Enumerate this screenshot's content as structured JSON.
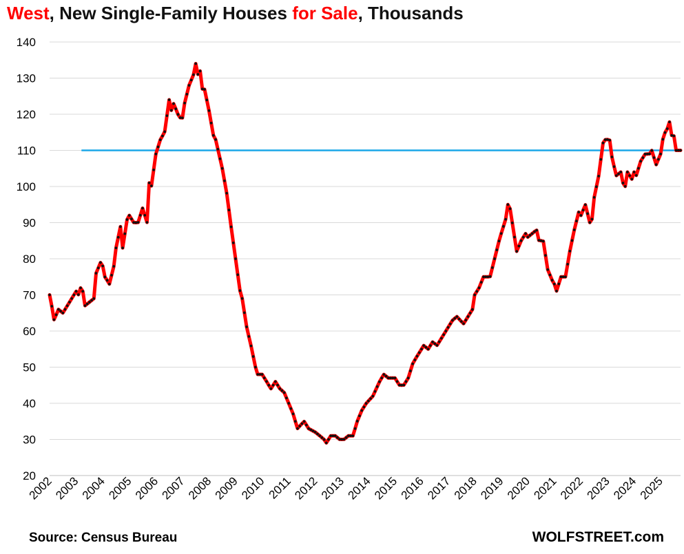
{
  "title": {
    "part1": "West",
    "part2": ", New Single-Family Houses ",
    "part3": "for Sale",
    "part4": ", Thousands"
  },
  "source": "Source: Census Bureau",
  "brand": "WOLFSTREET.com",
  "colors": {
    "line": "#ff0000",
    "marker": "#111111",
    "reference_line": "#1aa7e8",
    "grid": "#d9d9d9",
    "title_accent": "#ff0000"
  },
  "chart_data": {
    "type": "line",
    "title": "West, New Single-Family Houses for Sale, Thousands",
    "xlabel": "",
    "ylabel": "",
    "ylim": [
      20,
      140
    ],
    "yticks": [
      20,
      30,
      40,
      50,
      60,
      70,
      80,
      90,
      100,
      110,
      120,
      130,
      140
    ],
    "xlim": [
      2002.0,
      2025.75
    ],
    "xticks": [
      "2002",
      "2003",
      "2004",
      "2005",
      "2006",
      "2007",
      "2008",
      "2009",
      "2010",
      "2011",
      "2012",
      "2013",
      "2014",
      "2015",
      "2016",
      "2017",
      "2018",
      "2019",
      "2020",
      "2021",
      "2022",
      "2023",
      "2024",
      "2025"
    ],
    "grid": true,
    "reference_line": {
      "y": 110,
      "x_start": 2003.2,
      "x_end": 2025.75
    },
    "keypoints": [
      [
        2002.0,
        70
      ],
      [
        2002.08,
        67
      ],
      [
        2002.17,
        63
      ],
      [
        2002.33,
        66
      ],
      [
        2002.5,
        65
      ],
      [
        2002.75,
        68
      ],
      [
        2003.0,
        71
      ],
      [
        2003.08,
        70
      ],
      [
        2003.17,
        72
      ],
      [
        2003.25,
        71
      ],
      [
        2003.33,
        67
      ],
      [
        2003.5,
        68
      ],
      [
        2003.67,
        69
      ],
      [
        2003.75,
        76
      ],
      [
        2003.92,
        79
      ],
      [
        2004.0,
        78
      ],
      [
        2004.08,
        75
      ],
      [
        2004.17,
        74
      ],
      [
        2004.25,
        73
      ],
      [
        2004.42,
        78
      ],
      [
        2004.5,
        83
      ],
      [
        2004.67,
        89
      ],
      [
        2004.75,
        83
      ],
      [
        2004.92,
        91
      ],
      [
        2005.0,
        92
      ],
      [
        2005.17,
        90
      ],
      [
        2005.33,
        90
      ],
      [
        2005.5,
        94
      ],
      [
        2005.67,
        90
      ],
      [
        2005.75,
        101
      ],
      [
        2005.83,
        100
      ],
      [
        2006.0,
        109
      ],
      [
        2006.17,
        113
      ],
      [
        2006.33,
        115
      ],
      [
        2006.5,
        124
      ],
      [
        2006.58,
        121
      ],
      [
        2006.67,
        123
      ],
      [
        2006.83,
        120
      ],
      [
        2006.92,
        119
      ],
      [
        2007.0,
        119
      ],
      [
        2007.08,
        123
      ],
      [
        2007.25,
        128
      ],
      [
        2007.42,
        131
      ],
      [
        2007.5,
        134
      ],
      [
        2007.58,
        131
      ],
      [
        2007.67,
        132
      ],
      [
        2007.75,
        127
      ],
      [
        2007.83,
        127
      ],
      [
        2008.0,
        121
      ],
      [
        2008.17,
        114
      ],
      [
        2008.25,
        113
      ],
      [
        2008.5,
        105
      ],
      [
        2008.67,
        98
      ],
      [
        2008.83,
        89
      ],
      [
        2009.0,
        80
      ],
      [
        2009.17,
        71
      ],
      [
        2009.25,
        69
      ],
      [
        2009.42,
        61
      ],
      [
        2009.58,
        56
      ],
      [
        2009.75,
        50
      ],
      [
        2009.83,
        48
      ],
      [
        2010.0,
        48
      ],
      [
        2010.17,
        46
      ],
      [
        2010.33,
        44
      ],
      [
        2010.5,
        46
      ],
      [
        2010.67,
        44
      ],
      [
        2010.83,
        43
      ],
      [
        2011.0,
        40
      ],
      [
        2011.17,
        37
      ],
      [
        2011.25,
        35
      ],
      [
        2011.33,
        33
      ],
      [
        2011.58,
        35
      ],
      [
        2011.75,
        33
      ],
      [
        2012.0,
        32
      ],
      [
        2012.17,
        31
      ],
      [
        2012.33,
        30
      ],
      [
        2012.42,
        29
      ],
      [
        2012.58,
        31
      ],
      [
        2012.75,
        31
      ],
      [
        2012.92,
        30
      ],
      [
        2013.08,
        30
      ],
      [
        2013.25,
        31
      ],
      [
        2013.42,
        31
      ],
      [
        2013.58,
        35
      ],
      [
        2013.75,
        38
      ],
      [
        2013.92,
        40
      ],
      [
        2014.17,
        42
      ],
      [
        2014.42,
        46
      ],
      [
        2014.58,
        48
      ],
      [
        2014.75,
        47
      ],
      [
        2015.0,
        47
      ],
      [
        2015.17,
        45
      ],
      [
        2015.33,
        45
      ],
      [
        2015.5,
        47
      ],
      [
        2015.67,
        51
      ],
      [
        2015.83,
        53
      ],
      [
        2016.0,
        55
      ],
      [
        2016.08,
        56
      ],
      [
        2016.25,
        55
      ],
      [
        2016.42,
        57
      ],
      [
        2016.58,
        56
      ],
      [
        2016.75,
        58
      ],
      [
        2017.0,
        61
      ],
      [
        2017.17,
        63
      ],
      [
        2017.33,
        64
      ],
      [
        2017.58,
        62
      ],
      [
        2017.75,
        64
      ],
      [
        2017.92,
        66
      ],
      [
        2018.0,
        70
      ],
      [
        2018.17,
        72
      ],
      [
        2018.33,
        75
      ],
      [
        2018.58,
        75
      ],
      [
        2018.75,
        80
      ],
      [
        2018.92,
        85
      ],
      [
        2019.0,
        87
      ],
      [
        2019.17,
        91
      ],
      [
        2019.25,
        95
      ],
      [
        2019.33,
        94
      ],
      [
        2019.5,
        86
      ],
      [
        2019.58,
        82
      ],
      [
        2019.75,
        85
      ],
      [
        2019.92,
        87
      ],
      [
        2020.0,
        86
      ],
      [
        2020.17,
        87
      ],
      [
        2020.33,
        88
      ],
      [
        2020.42,
        85
      ],
      [
        2020.58,
        85
      ],
      [
        2020.75,
        77
      ],
      [
        2020.92,
        74
      ],
      [
        2021.0,
        73
      ],
      [
        2021.08,
        71
      ],
      [
        2021.25,
        75
      ],
      [
        2021.42,
        75
      ],
      [
        2021.58,
        82
      ],
      [
        2021.75,
        88
      ],
      [
        2021.92,
        93
      ],
      [
        2022.0,
        92
      ],
      [
        2022.17,
        95
      ],
      [
        2022.33,
        90
      ],
      [
        2022.42,
        91
      ],
      [
        2022.5,
        97
      ],
      [
        2022.67,
        103
      ],
      [
        2022.83,
        112
      ],
      [
        2022.92,
        113
      ],
      [
        2023.08,
        113
      ],
      [
        2023.17,
        108
      ],
      [
        2023.33,
        103
      ],
      [
        2023.5,
        104
      ],
      [
        2023.58,
        101
      ],
      [
        2023.67,
        100
      ],
      [
        2023.75,
        104
      ],
      [
        2023.92,
        102
      ],
      [
        2024.0,
        104
      ],
      [
        2024.08,
        103
      ],
      [
        2024.25,
        107
      ],
      [
        2024.42,
        109
      ],
      [
        2024.58,
        109
      ],
      [
        2024.67,
        110
      ],
      [
        2024.75,
        108
      ],
      [
        2024.83,
        106
      ],
      [
        2025.0,
        109
      ],
      [
        2025.08,
        113
      ],
      [
        2025.17,
        115
      ],
      [
        2025.25,
        116
      ],
      [
        2025.33,
        118
      ],
      [
        2025.42,
        114
      ],
      [
        2025.5,
        114
      ],
      [
        2025.58,
        110
      ],
      [
        2025.67,
        110
      ],
      [
        2025.75,
        110
      ]
    ]
  }
}
